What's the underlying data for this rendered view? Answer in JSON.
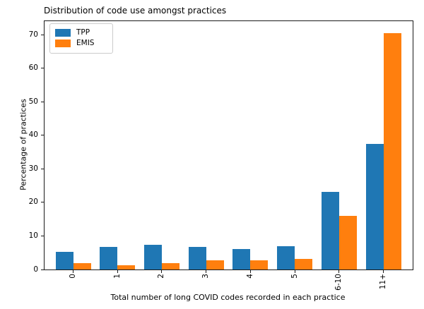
{
  "chart_data": {
    "type": "bar",
    "title": "Distribution of code use amongst practices",
    "xlabel": "Total number of long COVID codes recorded in each practice",
    "ylabel": "Percentage of practices",
    "categories": [
      "0",
      "1",
      "2",
      "3",
      "4",
      "5",
      "6-10",
      "11+"
    ],
    "series": [
      {
        "name": "TPP",
        "color": "#1f77b4",
        "values": [
          5.3,
          6.8,
          7.4,
          6.8,
          6.0,
          7.0,
          23.2,
          37.5
        ]
      },
      {
        "name": "EMIS",
        "color": "#ff7f0e",
        "values": [
          2.0,
          1.3,
          2.0,
          2.8,
          2.7,
          3.1,
          15.9,
          70.5
        ]
      }
    ],
    "ylim": [
      0,
      74
    ],
    "yticks": [
      0,
      10,
      20,
      30,
      40,
      50,
      60,
      70
    ],
    "grid": false,
    "legend_position": "upper-left",
    "x_tick_rotation": 90,
    "spine_color": "#1a1a1a",
    "background": "#ffffff"
  }
}
